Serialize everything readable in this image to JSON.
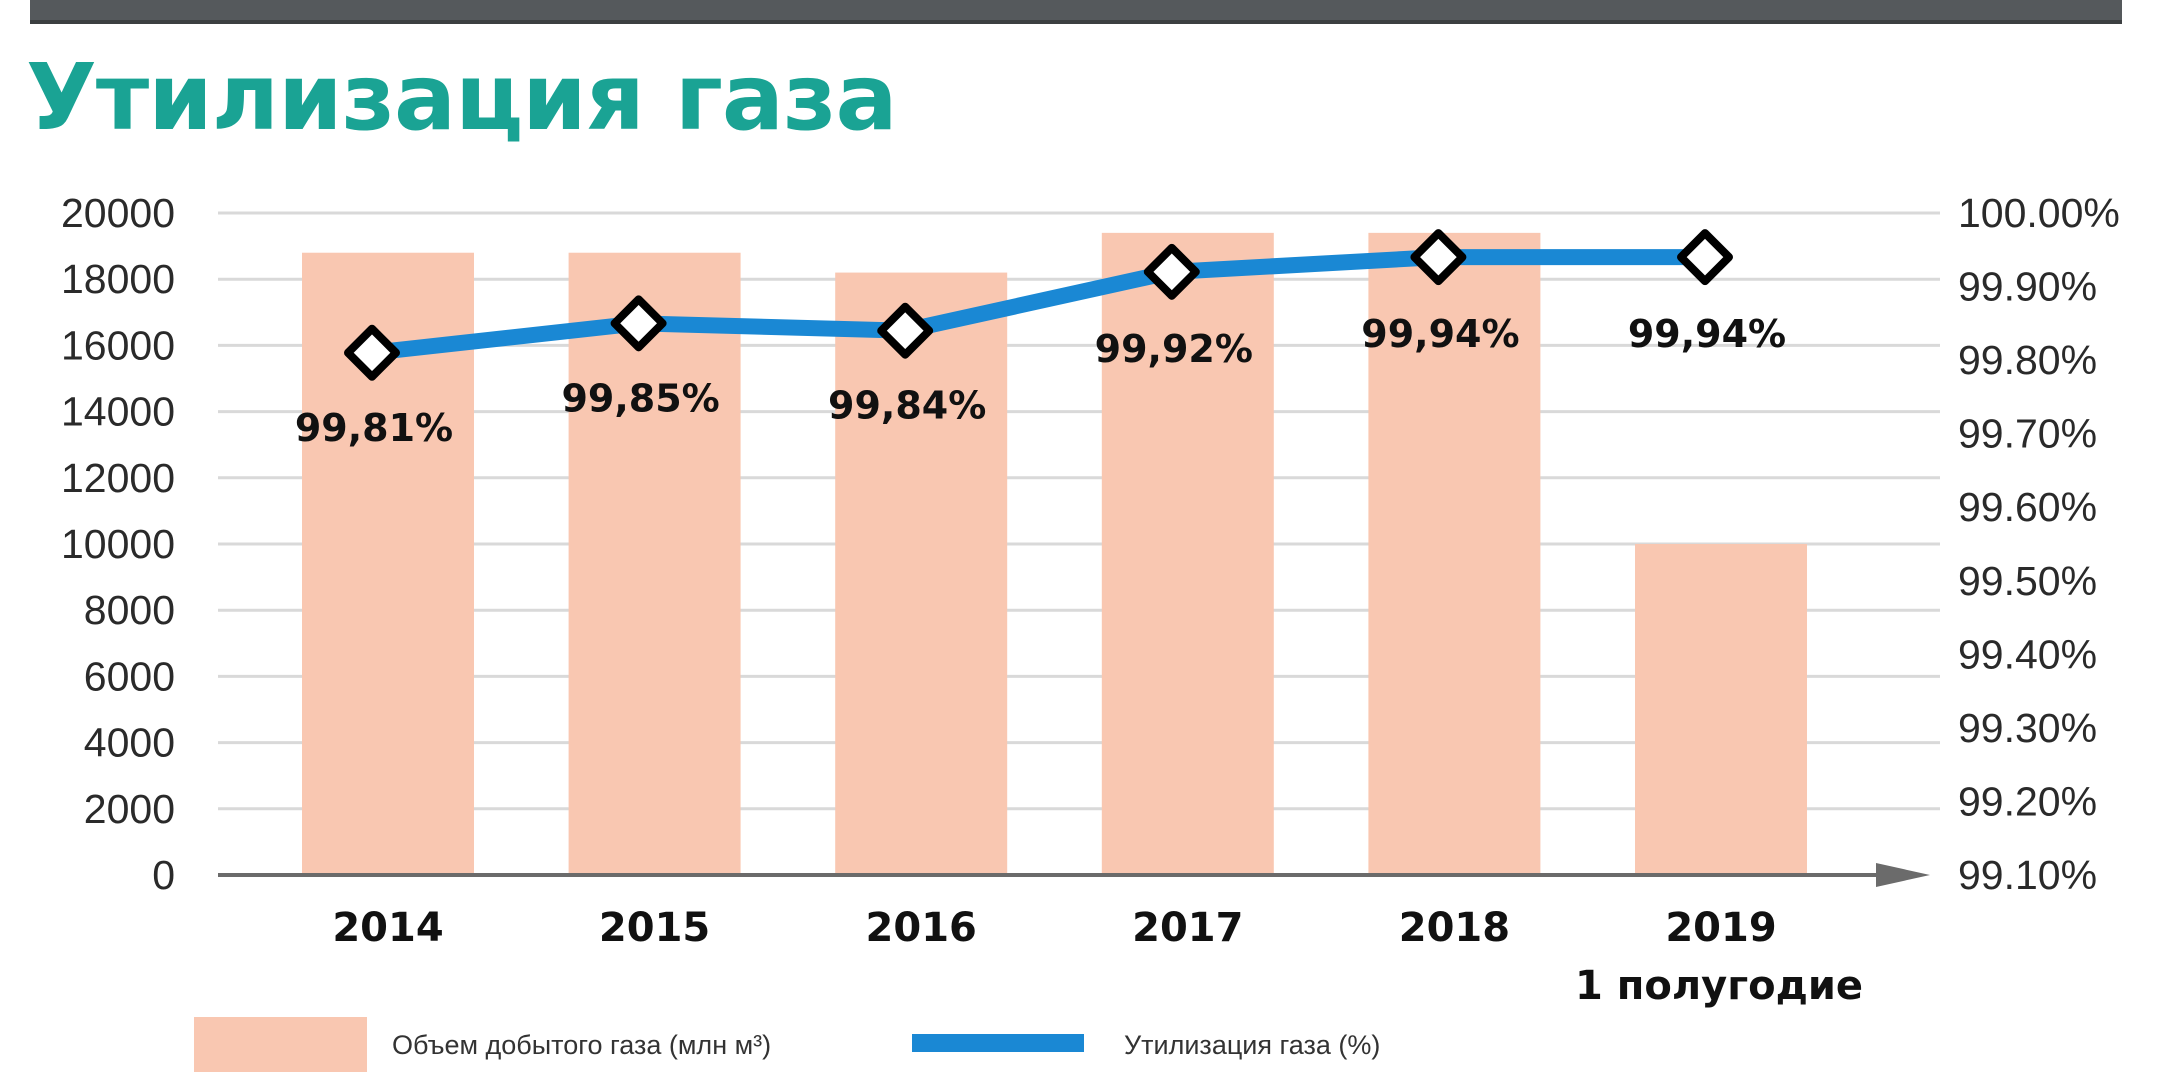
{
  "page": {
    "title": "Утилизация газа"
  },
  "colors": {
    "title": "#1aa394",
    "bar": "#f9c7b1",
    "line": "#1a88d4",
    "marker_fill": "#ffffff",
    "marker_stroke": "#000000",
    "grid": "#d9d9d9",
    "axis": "#6b6b6b",
    "top_bar": "#55595c"
  },
  "chart_data": {
    "type": "bar",
    "categories": [
      "2014",
      "2015",
      "2016",
      "2017",
      "2018",
      "2019"
    ],
    "category_sublabels": [
      "",
      "",
      "",
      "",
      "",
      "1 полугодие"
    ],
    "y_left": {
      "ylim": [
        0,
        20000
      ],
      "ticks": [
        "20000",
        "18000",
        "16000",
        "14000",
        "12000",
        "10000",
        "8000",
        "6000",
        "4000",
        "2000",
        "0"
      ]
    },
    "y_right": {
      "ylim": [
        99.1,
        100.0
      ],
      "ticks": [
        "100.00%",
        "99.90%",
        "99.80%",
        "99.70%",
        "99.60%",
        "99.50%",
        "99.40%",
        "99.30%",
        "99.20%",
        "99.10%"
      ]
    },
    "grid": true,
    "series": [
      {
        "name": "Объем добытого газа (млн м³)",
        "type": "bar",
        "axis": "left",
        "values": [
          18800,
          18800,
          18200,
          19400,
          19400,
          10000
        ]
      },
      {
        "name": "Утилизация газа (%)",
        "type": "line",
        "axis": "right",
        "values": [
          99.81,
          99.85,
          99.84,
          99.92,
          99.94,
          99.94
        ],
        "labels": [
          "99,81%",
          "99,85%",
          "99,84%",
          "99,92%",
          "99,94%",
          "99,94%"
        ]
      }
    ],
    "legend_position": "bottom"
  }
}
